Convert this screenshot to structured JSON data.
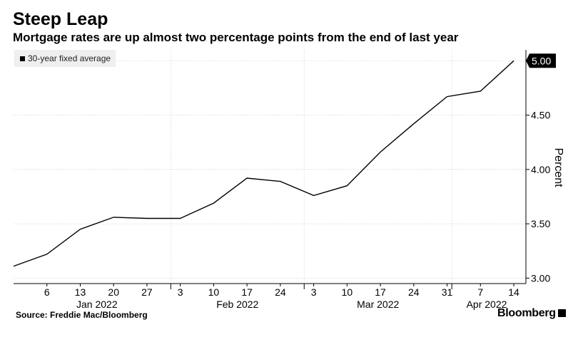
{
  "title": "Steep Leap",
  "subtitle": "Mortgage rates are up almost two percentage points from the end of last year",
  "source": "Source: Freddie Mac/Bloomberg",
  "brand": "Bloomberg",
  "colors": {
    "line": "#000000",
    "grid": "#cccccc",
    "legend_bg": "#efefef"
  },
  "chart_data": {
    "type": "line",
    "title": "Steep Leap",
    "ylabel": "Percent",
    "xlabel": "",
    "ylim": [
      2.95,
      5.1
    ],
    "y_ticks": [
      {
        "value": 3.0,
        "label": "3.00"
      },
      {
        "value": 3.5,
        "label": "3.50"
      },
      {
        "value": 4.0,
        "label": "4.00"
      },
      {
        "value": 4.5,
        "label": "4.50"
      },
      {
        "value": 5.0,
        "label": "5.00"
      }
    ],
    "x_ticks": [
      "6",
      "13",
      "20",
      "27",
      "3",
      "10",
      "17",
      "24",
      "3",
      "10",
      "17",
      "24",
      "31",
      "7",
      "14"
    ],
    "month_labels": [
      "Jan 2022",
      "Feb 2022",
      "Mar 2022",
      "Apr 2022"
    ],
    "grid": true,
    "legend": {
      "position": "top-left",
      "entries": [
        "30-year fixed average"
      ]
    },
    "series": [
      {
        "name": "30-year fixed average",
        "x": [
          "2021-12-30",
          "2022-01-06",
          "2022-01-13",
          "2022-01-20",
          "2022-01-27",
          "2022-02-03",
          "2022-02-10",
          "2022-02-17",
          "2022-02-24",
          "2022-03-03",
          "2022-03-10",
          "2022-03-17",
          "2022-03-24",
          "2022-03-31",
          "2022-04-07",
          "2022-04-14"
        ],
        "values": [
          3.11,
          3.22,
          3.45,
          3.56,
          3.55,
          3.55,
          3.69,
          3.92,
          3.89,
          3.76,
          3.85,
          4.16,
          4.42,
          4.67,
          4.72,
          5.0
        ]
      }
    ],
    "last_value_label": "5.00"
  }
}
